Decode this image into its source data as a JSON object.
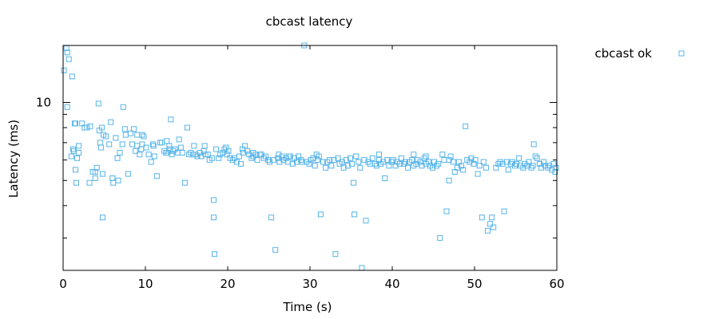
{
  "chart_data": {
    "type": "scatter",
    "title": "cbcast latency",
    "xlabel": "Time (s)",
    "ylabel": "Latency (ms)",
    "xlim": [
      0,
      60
    ],
    "ylim": [
      2.25,
      16.6
    ],
    "yscale": "log",
    "x_ticks": [
      "0",
      "10",
      "20",
      "30",
      "40",
      "50",
      "60"
    ],
    "y_tick_labels": [
      "10"
    ],
    "legend": {
      "placement": "top-right-outside"
    },
    "grid": false,
    "marker": "open-square",
    "color": "#56b4e9",
    "series": [
      {
        "name": "cbcast ok",
        "points": [
          [
            0.1,
            13.3
          ],
          [
            0.4,
            16.2
          ],
          [
            0.5,
            15.6
          ],
          [
            0.5,
            9.6
          ],
          [
            0.7,
            14.7
          ],
          [
            1.0,
            6.2
          ],
          [
            1.1,
            12.6
          ],
          [
            1.2,
            6.6
          ],
          [
            1.3,
            6.5
          ],
          [
            1.4,
            8.3
          ],
          [
            1.5,
            8.3
          ],
          [
            1.5,
            5.5
          ],
          [
            1.6,
            4.9
          ],
          [
            1.7,
            6.1
          ],
          [
            1.9,
            6.4
          ],
          [
            1.9,
            6.8
          ],
          [
            2.3,
            8.3
          ],
          [
            2.6,
            8.0
          ],
          [
            2.9,
            8.0
          ],
          [
            3.2,
            4.9
          ],
          [
            3.3,
            8.1
          ],
          [
            3.6,
            5.4
          ],
          [
            3.9,
            5.1
          ],
          [
            3.9,
            5.4
          ],
          [
            4.1,
            5.6
          ],
          [
            4.3,
            9.9
          ],
          [
            4.4,
            7.8
          ],
          [
            4.5,
            7.0
          ],
          [
            4.6,
            6.7
          ],
          [
            4.7,
            8.0
          ],
          [
            4.8,
            3.6
          ],
          [
            4.8,
            5.3
          ],
          [
            4.9,
            7.5
          ],
          [
            5.2,
            7.4
          ],
          [
            5.6,
            6.9
          ],
          [
            5.8,
            8.4
          ],
          [
            6.0,
            5.1
          ],
          [
            6.1,
            4.9
          ],
          [
            6.4,
            7.3
          ],
          [
            6.7,
            5.0
          ],
          [
            6.9,
            6.4
          ],
          [
            7.2,
            6.9
          ],
          [
            7.3,
            9.6
          ],
          [
            7.5,
            7.9
          ],
          [
            7.6,
            7.5
          ],
          [
            7.9,
            5.3
          ],
          [
            8.2,
            7.6
          ],
          [
            8.4,
            6.9
          ],
          [
            8.8,
            6.5
          ],
          [
            9.0,
            6.8
          ],
          [
            9.0,
            7.5
          ],
          [
            9.3,
            6.3
          ],
          [
            9.5,
            6.6
          ],
          [
            9.6,
            7.5
          ],
          [
            9.6,
            6.9
          ],
          [
            9.8,
            7.4
          ],
          [
            10.1,
            6.7
          ],
          [
            10.4,
            6.3
          ],
          [
            10.7,
            5.9
          ],
          [
            11.0,
            6.8
          ],
          [
            11.1,
            6.2
          ],
          [
            11.4,
            5.2
          ],
          [
            11.8,
            7.0
          ],
          [
            12.0,
            7.0
          ],
          [
            12.3,
            6.5
          ],
          [
            12.5,
            6.4
          ],
          [
            12.7,
            6.4
          ],
          [
            12.9,
            6.8
          ],
          [
            13.0,
            6.6
          ],
          [
            13.1,
            8.6
          ],
          [
            13.2,
            6.3
          ],
          [
            13.4,
            6.5
          ],
          [
            13.6,
            6.6
          ],
          [
            13.9,
            6.4
          ],
          [
            14.1,
            7.2
          ],
          [
            14.3,
            6.7
          ],
          [
            14.5,
            6.4
          ],
          [
            14.8,
            4.9
          ],
          [
            15.1,
            8.0
          ],
          [
            15.3,
            6.3
          ],
          [
            15.5,
            6.4
          ],
          [
            15.8,
            6.3
          ],
          [
            16.1,
            6.3
          ],
          [
            16.3,
            6.2
          ],
          [
            16.6,
            6.4
          ],
          [
            16.8,
            6.2
          ],
          [
            17.1,
            6.5
          ],
          [
            17.3,
            6.3
          ],
          [
            17.6,
            6.3
          ],
          [
            17.8,
            6.0
          ],
          [
            18.1,
            6.1
          ],
          [
            18.3,
            3.6
          ],
          [
            18.3,
            4.2
          ],
          [
            18.4,
            2.6
          ],
          [
            18.6,
            6.6
          ],
          [
            18.9,
            6.1
          ],
          [
            19.1,
            6.3
          ],
          [
            19.4,
            6.4
          ],
          [
            19.6,
            6.6
          ],
          [
            19.9,
            6.3
          ],
          [
            20.1,
            6.5
          ],
          [
            20.3,
            6.1
          ],
          [
            20.6,
            6.0
          ],
          [
            20.8,
            6.1
          ],
          [
            21.1,
            5.9
          ],
          [
            21.4,
            6.2
          ],
          [
            21.6,
            5.8
          ],
          [
            21.9,
            6.4
          ],
          [
            22.1,
            6.8
          ],
          [
            22.4,
            6.5
          ],
          [
            22.6,
            6.3
          ],
          [
            22.9,
            6.1
          ],
          [
            23.1,
            6.2
          ],
          [
            23.4,
            6.3
          ],
          [
            23.6,
            6.0
          ],
          [
            23.9,
            6.3
          ],
          [
            24.1,
            6.3
          ],
          [
            24.4,
            6.1
          ],
          [
            24.6,
            6.2
          ],
          [
            24.9,
            6.0
          ],
          [
            25.1,
            5.9
          ],
          [
            25.3,
            3.6
          ],
          [
            25.6,
            6.0
          ],
          [
            25.8,
            2.7
          ],
          [
            26.1,
            6.1
          ],
          [
            26.3,
            5.9
          ],
          [
            26.6,
            6.2
          ],
          [
            26.8,
            6.0
          ],
          [
            27.1,
            6.1
          ],
          [
            27.3,
            5.9
          ],
          [
            27.6,
            6.2
          ],
          [
            27.9,
            5.8
          ],
          [
            28.1,
            6.1
          ],
          [
            28.4,
            5.9
          ],
          [
            28.6,
            6.2
          ],
          [
            28.9,
            6.0
          ],
          [
            29.1,
            5.9
          ],
          [
            29.3,
            16.6
          ],
          [
            29.6,
            5.9
          ],
          [
            29.9,
            5.8
          ],
          [
            30.1,
            6.0
          ],
          [
            30.4,
            6.1
          ],
          [
            30.6,
            5.7
          ],
          [
            30.9,
            6.0
          ],
          [
            31.1,
            6.2
          ],
          [
            31.3,
            3.7
          ],
          [
            31.6,
            5.9
          ],
          [
            31.9,
            5.6
          ],
          [
            32.1,
            5.9
          ],
          [
            32.4,
            6.0
          ],
          [
            32.6,
            5.7
          ],
          [
            32.9,
            6.0
          ],
          [
            33.1,
            2.6
          ],
          [
            33.4,
            6.1
          ],
          [
            33.6,
            5.8
          ],
          [
            33.9,
            5.9
          ],
          [
            34.1,
            5.6
          ],
          [
            34.4,
            6.0
          ],
          [
            34.6,
            5.7
          ],
          [
            34.9,
            6.1
          ],
          [
            35.1,
            5.8
          ],
          [
            35.3,
            4.9
          ],
          [
            35.4,
            3.7
          ],
          [
            35.6,
            6.2
          ],
          [
            35.9,
            5.9
          ],
          [
            36.1,
            5.6
          ],
          [
            36.3,
            2.3
          ],
          [
            36.6,
            6.0
          ],
          [
            36.8,
            3.5
          ],
          [
            37.1,
            5.9
          ],
          [
            37.3,
            5.8
          ],
          [
            37.6,
            6.1
          ],
          [
            37.9,
            5.8
          ],
          [
            38.1,
            5.7
          ],
          [
            38.4,
            6.0
          ],
          [
            38.6,
            5.8
          ],
          [
            38.9,
            5.9
          ],
          [
            39.1,
            5.1
          ],
          [
            39.4,
            6.0
          ],
          [
            39.6,
            5.7
          ],
          [
            39.9,
            5.9
          ],
          [
            40.1,
            6.0
          ],
          [
            40.4,
            5.7
          ],
          [
            40.6,
            5.9
          ],
          [
            40.9,
            5.8
          ],
          [
            41.1,
            6.1
          ],
          [
            41.4,
            5.8
          ],
          [
            41.6,
            5.9
          ],
          [
            41.9,
            5.6
          ],
          [
            42.1,
            5.9
          ],
          [
            42.4,
            6.0
          ],
          [
            42.6,
            5.7
          ],
          [
            42.9,
            5.8
          ],
          [
            43.1,
            6.0
          ],
          [
            43.4,
            5.9
          ],
          [
            43.6,
            5.7
          ],
          [
            43.9,
            6.1
          ],
          [
            44.1,
            5.8
          ],
          [
            44.4,
            5.9
          ],
          [
            44.6,
            5.7
          ],
          [
            44.9,
            5.6
          ],
          [
            45.1,
            5.9
          ],
          [
            45.4,
            5.7
          ],
          [
            45.6,
            5.8
          ],
          [
            45.8,
            3.0
          ],
          [
            46.1,
            6.3
          ],
          [
            46.3,
            6.0
          ],
          [
            46.6,
            3.8
          ],
          [
            46.9,
            6.0
          ],
          [
            47.1,
            6.2
          ],
          [
            47.4,
            5.9
          ],
          [
            47.6,
            5.4
          ],
          [
            47.9,
            5.6
          ],
          [
            48.1,
            5.9
          ],
          [
            48.4,
            5.7
          ],
          [
            48.6,
            5.5
          ],
          [
            48.9,
            8.1
          ],
          [
            49.1,
            6.0
          ],
          [
            49.4,
            5.9
          ],
          [
            49.6,
            6.1
          ],
          [
            49.9,
            5.8
          ],
          [
            50.1,
            6.0
          ],
          [
            50.4,
            5.3
          ],
          [
            50.6,
            5.7
          ],
          [
            50.9,
            3.6
          ],
          [
            51.1,
            5.9
          ],
          [
            51.4,
            5.6
          ],
          [
            51.6,
            3.2
          ],
          [
            51.9,
            3.4
          ],
          [
            52.1,
            3.6
          ],
          [
            52.3,
            3.3
          ],
          [
            52.6,
            5.6
          ],
          [
            52.9,
            5.8
          ],
          [
            53.1,
            5.9
          ],
          [
            53.4,
            5.8
          ],
          [
            53.6,
            3.8
          ],
          [
            53.9,
            5.9
          ],
          [
            54.1,
            5.5
          ],
          [
            54.4,
            5.8
          ],
          [
            54.6,
            5.9
          ],
          [
            54.9,
            5.7
          ],
          [
            55.1,
            5.8
          ],
          [
            55.4,
            6.1
          ],
          [
            55.6,
            5.7
          ],
          [
            55.9,
            5.6
          ],
          [
            56.1,
            5.8
          ],
          [
            56.4,
            5.7
          ],
          [
            56.6,
            5.9
          ],
          [
            56.9,
            5.6
          ],
          [
            57.1,
            5.7
          ],
          [
            57.4,
            6.2
          ],
          [
            57.6,
            6.1
          ],
          [
            57.9,
            5.8
          ],
          [
            58.1,
            5.6
          ],
          [
            58.4,
            5.9
          ],
          [
            58.6,
            5.7
          ],
          [
            58.9,
            5.6
          ],
          [
            59.1,
            5.7
          ],
          [
            59.4,
            5.5
          ],
          [
            59.6,
            5.8
          ],
          [
            59.8,
            5.4
          ],
          [
            59.9,
            5.6
          ],
          [
            57.2,
            6.9
          ],
          [
            46.9,
            5.0
          ],
          [
            44.1,
            6.2
          ],
          [
            42.6,
            6.3
          ],
          [
            38.4,
            6.3
          ],
          [
            30.8,
            6.3
          ],
          [
            27.4,
            6.2
          ],
          [
            26.2,
            6.3
          ],
          [
            23.1,
            6.4
          ],
          [
            21.8,
            6.6
          ],
          [
            19.8,
            6.7
          ],
          [
            17.2,
            6.8
          ],
          [
            15.9,
            6.8
          ],
          [
            12.6,
            7.1
          ],
          [
            10.9,
            6.9
          ],
          [
            8.6,
            7.9
          ],
          [
            6.6,
            6.1
          ]
        ]
      }
    ]
  }
}
